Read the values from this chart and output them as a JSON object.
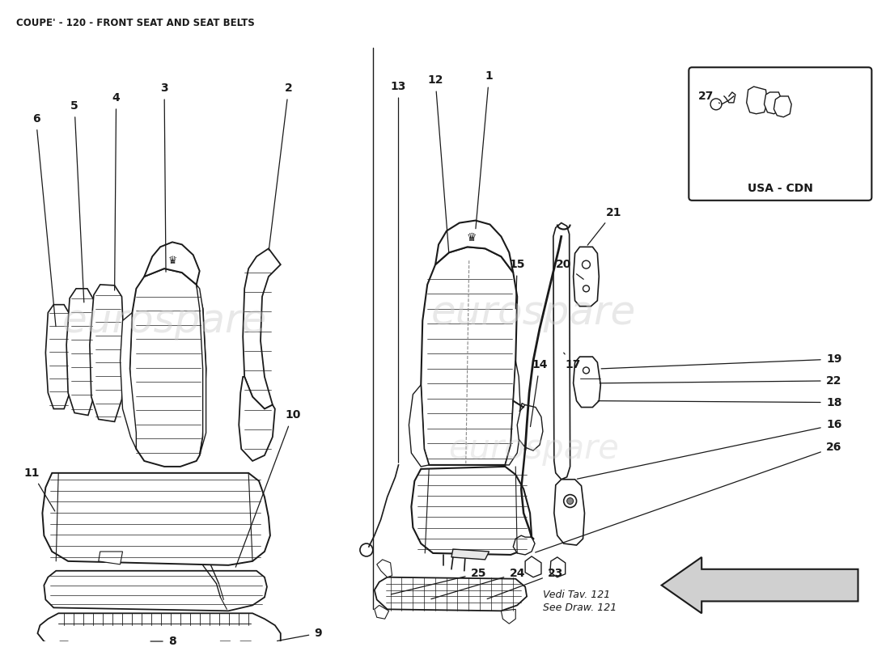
{
  "title": "COUPE' - 120 - FRONT SEAT AND SEAT BELTS",
  "title_fontsize": 8.5,
  "title_fontweight": "bold",
  "background_color": "#ffffff",
  "line_color": "#1a1a1a",
  "watermark_color": "#cccccc",
  "label_fontsize": 10,
  "usa_cdn_label": "USA - CDN",
  "vedi_tav": "Vedi Tav. 121",
  "see_draw": "See Draw. 121"
}
